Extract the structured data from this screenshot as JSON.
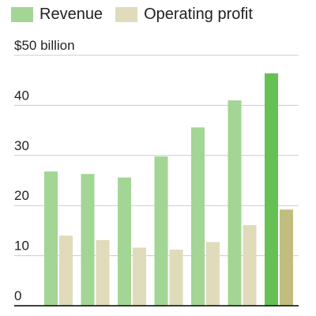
{
  "colors": {
    "revenue": "#a3d595",
    "revenue_latest": "#66c055",
    "profit": "#e0dbbb",
    "profit_latest": "#c0bd7e",
    "grid": "#cccccc",
    "axis": "#000000"
  },
  "legend": {
    "revenue_label": "Revenue",
    "profit_label": "Operating profit"
  },
  "chart_data": {
    "type": "bar",
    "categories": [
      "",
      "",
      "",
      "",
      "",
      "",
      ""
    ],
    "series": [
      {
        "name": "Revenue",
        "values": [
          26.8,
          26.3,
          25.6,
          29.8,
          35.6,
          41.0,
          46.4
        ]
      },
      {
        "name": "Operating profit",
        "values": [
          14.0,
          13.1,
          11.6,
          11.2,
          12.7,
          16.1,
          19.2
        ]
      }
    ],
    "ylim": [
      0,
      50
    ],
    "yticks": [
      0,
      10,
      20,
      30,
      40,
      50
    ],
    "ytick_labels": [
      "0",
      "10",
      "20",
      "30",
      "40",
      "$50 billion"
    ],
    "grid": true,
    "legend_position": "top-left",
    "highlight_last_category": true
  }
}
